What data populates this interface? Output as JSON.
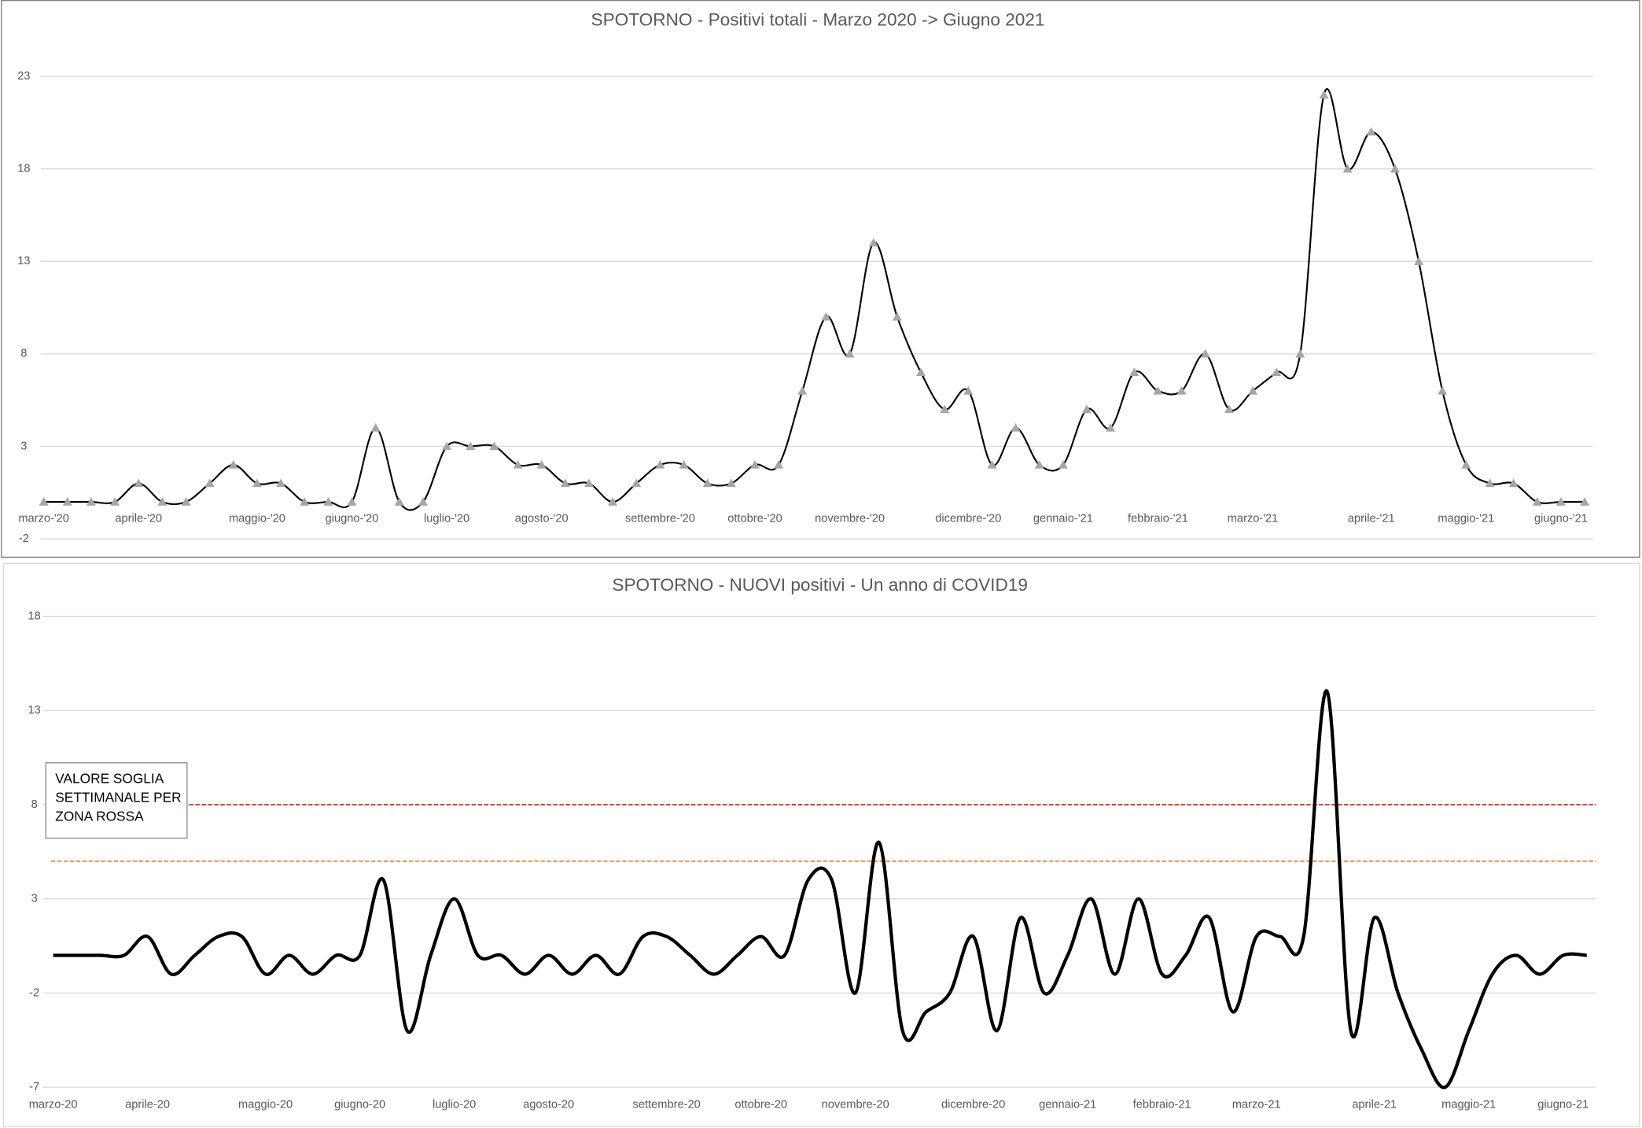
{
  "chart_data": [
    {
      "type": "line",
      "title": "SPOTORNO - Positivi totali - Marzo 2020 -> Giugno 2021",
      "categories": [
        "marzo-'20",
        null,
        null,
        null,
        "aprile-'20",
        null,
        null,
        null,
        null,
        "maggio-'20",
        null,
        null,
        null,
        "giugno-'20",
        null,
        null,
        null,
        "luglio-'20",
        null,
        null,
        null,
        "agosto-'20",
        null,
        null,
        null,
        null,
        "settembre-'20",
        null,
        null,
        null,
        "ottobre-'20",
        null,
        null,
        null,
        "novembre-'20",
        null,
        null,
        null,
        null,
        "dicembre-'20",
        null,
        null,
        null,
        "gennaio-'21",
        null,
        null,
        null,
        "febbraio-'21",
        null,
        null,
        null,
        "marzo-'21",
        null,
        null,
        null,
        null,
        "aprile-'21",
        null,
        null,
        null,
        "maggio-'21",
        null,
        null,
        null,
        "giugno-'21",
        null
      ],
      "series": [
        {
          "name": "Positivi totali",
          "color": "#000000",
          "marker_color": "#a6a6a6",
          "values": [
            0,
            0,
            0,
            0,
            1,
            0,
            0,
            1,
            2,
            1,
            1,
            0,
            0,
            0,
            4,
            0,
            0,
            3,
            3,
            3,
            2,
            2,
            1,
            1,
            0,
            1,
            2,
            2,
            1,
            1,
            2,
            2,
            6,
            10,
            8,
            14,
            10,
            7,
            5,
            6,
            2,
            4,
            2,
            2,
            5,
            4,
            7,
            6,
            6,
            8,
            5,
            6,
            7,
            8,
            22,
            18,
            20,
            18,
            13,
            6,
            2,
            1,
            1,
            0,
            0,
            0
          ]
        }
      ],
      "ylim": [
        -2,
        23
      ],
      "yticks": [
        -2,
        3,
        8,
        13,
        18,
        23
      ],
      "grid": true,
      "markers": true
    },
    {
      "type": "line",
      "title": "SPOTORNO - NUOVI positivi - Un anno di COVID19",
      "categories": [
        "marzo-20",
        null,
        null,
        null,
        "aprile-20",
        null,
        null,
        null,
        null,
        "maggio-20",
        null,
        null,
        null,
        "giugno-20",
        null,
        null,
        null,
        "luglio-20",
        null,
        null,
        null,
        "agosto-20",
        null,
        null,
        null,
        null,
        "settembre-20",
        null,
        null,
        null,
        "ottobre-20",
        null,
        null,
        null,
        "novembre-20",
        null,
        null,
        null,
        null,
        "dicembre-20",
        null,
        null,
        null,
        "gennaio-21",
        null,
        null,
        null,
        "febbraio-21",
        null,
        null,
        null,
        "marzo-21",
        null,
        null,
        null,
        null,
        "aprile-21",
        null,
        null,
        null,
        "maggio-21",
        null,
        null,
        null,
        "giugno-21",
        null
      ],
      "series": [
        {
          "name": "Nuovi positivi",
          "color": "#000000",
          "values": [
            0,
            0,
            0,
            0,
            1,
            -1,
            0,
            1,
            1,
            -1,
            0,
            -1,
            0,
            0,
            4,
            -4,
            0,
            3,
            0,
            0,
            -1,
            0,
            -1,
            0,
            -1,
            1,
            1,
            0,
            -1,
            0,
            1,
            0,
            4,
            4,
            -2,
            6,
            -4,
            -3,
            -2,
            1,
            -4,
            2,
            -2,
            0,
            3,
            -1,
            3,
            -1,
            0,
            2,
            -3,
            1,
            1,
            1,
            14,
            -4,
            2,
            -2,
            -5,
            -7,
            -4,
            -1,
            0,
            -1,
            0,
            0
          ]
        }
      ],
      "ylim": [
        -7,
        18
      ],
      "yticks": [
        -7,
        -2,
        3,
        8,
        13,
        18
      ],
      "grid": true,
      "markers": false,
      "reference_lines": [
        {
          "value": 8,
          "color": "#d62d20"
        },
        {
          "value": 5,
          "color": "#e8822e"
        }
      ],
      "annotation": [
        "VALORE SOGLIA",
        "SETTIMANALE PER",
        "ZONA ROSSA"
      ]
    }
  ]
}
